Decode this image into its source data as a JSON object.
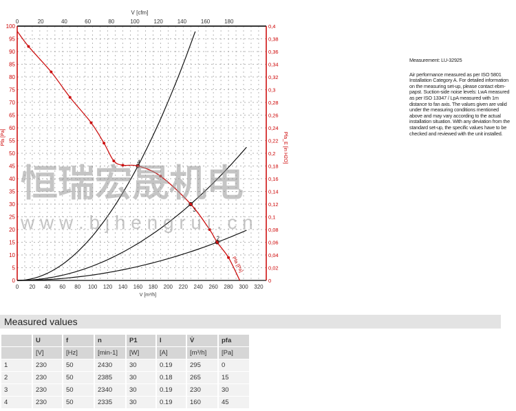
{
  "chart_data": {
    "type": "line",
    "xlabel": "V [m³/h]",
    "x2label": "V [cfm]",
    "ylabel": "Pfa [Pa]",
    "y2label": "Pfa_E [in H2O]",
    "xlim": [
      0,
      326
    ],
    "ylim": [
      0,
      100
    ],
    "y2lim": [
      0,
      0.4
    ],
    "x_ticks": [
      0,
      20,
      40,
      60,
      80,
      100,
      120,
      140,
      160,
      180,
      200,
      220,
      240,
      260,
      280,
      300,
      320
    ],
    "x2_ticks": [
      0,
      20,
      40,
      60,
      80,
      100,
      120,
      140,
      160,
      180
    ],
    "y_ticks": [
      0,
      5,
      10,
      15,
      20,
      25,
      30,
      35,
      40,
      45,
      50,
      55,
      60,
      65,
      70,
      75,
      80,
      85,
      90,
      95,
      100
    ],
    "y2_ticks": [
      "0",
      "0,02",
      "0,04",
      "0,06",
      "0,08",
      "0,1",
      "0,12",
      "0,14",
      "0,16",
      "0,18",
      "0,2",
      "0,22",
      "0,24",
      "0,26",
      "0,28",
      "0,3",
      "0,32",
      "0,34",
      "0,36",
      "0,38",
      "0,4"
    ],
    "grid": true,
    "fan_curve": {
      "label": "Pfa [Pa]",
      "color": "#cc1111",
      "x": [
        0,
        15,
        45,
        70,
        98,
        115,
        128,
        140,
        160,
        190,
        230,
        255,
        265,
        280,
        295
      ],
      "y": [
        98,
        92,
        82,
        72,
        62,
        54,
        47,
        45.3,
        45,
        41,
        30,
        20,
        15,
        9,
        0
      ]
    },
    "system_curves": [
      {
        "label": "4",
        "x_op": 160,
        "y_op": 45,
        "x_max": 238
      },
      {
        "label": "3",
        "x_op": 230,
        "y_op": 30,
        "x_max": 305
      },
      {
        "label": "2",
        "x_op": 265,
        "y_op": 15,
        "x_max": 305
      }
    ]
  },
  "note": {
    "measurement": "Measurement: LU-32925",
    "text": "Air performance measured as per ISO 5801 Installation Category A. For detailed information on the measuring set-up, please contact ebm-papst. Suction-side noise levels: LwA measured as per ISO 13347 / LpA measured with 1m distance to fan axis. The values given are valid under the measuring conditions mentioned above and may vary according to the actual installation situation. With any deviation from the standard set-up, the specific values have to be checked and reviewed with the unit installed."
  },
  "watermark": {
    "cn": "恒瑞宏晟机电",
    "url": "w w w . b j h e n g r u i . c n"
  },
  "table": {
    "title": "Measured values",
    "headers": [
      "",
      "U",
      "f",
      "n",
      "P1",
      "I",
      "V̇",
      "pfa"
    ],
    "units": [
      "",
      "[V]",
      "[Hz]",
      "[min-1]",
      "[W]",
      "[A]",
      "[m³/h]",
      "[Pa]"
    ],
    "rows": [
      [
        "1",
        "230",
        "50",
        "2430",
        "30",
        "0.19",
        "295",
        "0"
      ],
      [
        "2",
        "230",
        "50",
        "2385",
        "30",
        "0.18",
        "265",
        "15"
      ],
      [
        "3",
        "230",
        "50",
        "2340",
        "30",
        "0.19",
        "230",
        "30"
      ],
      [
        "4",
        "230",
        "50",
        "2335",
        "30",
        "0.19",
        "160",
        "45"
      ]
    ]
  }
}
